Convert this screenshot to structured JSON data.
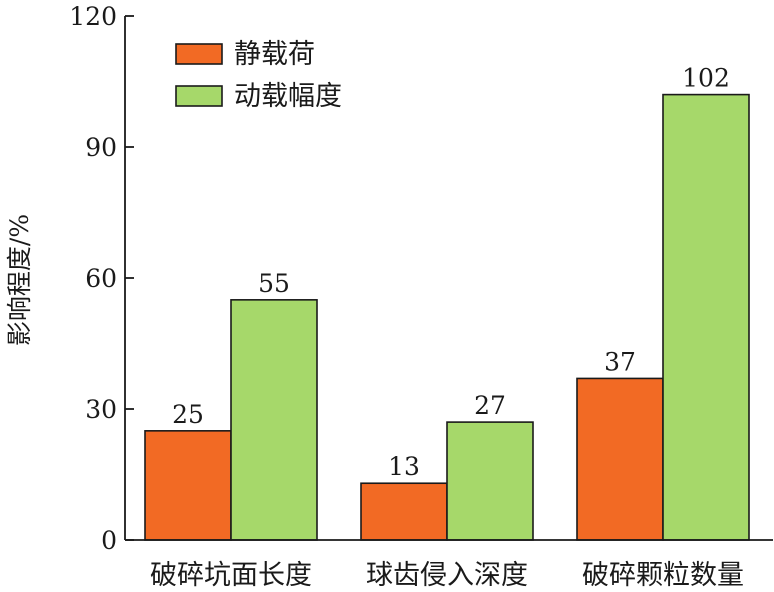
{
  "chart_data": {
    "type": "bar",
    "categories": [
      "破碎坑面长度",
      "球齿侵入深度",
      "破碎颗粒数量"
    ],
    "series": [
      {
        "name": "静载荷",
        "values": [
          25,
          13,
          37
        ],
        "color": "#f26a24"
      },
      {
        "name": "动载幅度",
        "values": [
          55,
          27,
          102
        ],
        "color": "#a6d86a"
      }
    ],
    "title": "",
    "xlabel": "",
    "ylabel": "影响程度/%",
    "ylim": [
      0,
      120
    ],
    "yticks": [
      0,
      30,
      60,
      90,
      120
    ],
    "grid": false,
    "legend_position": "top-left",
    "data_labels": true
  }
}
